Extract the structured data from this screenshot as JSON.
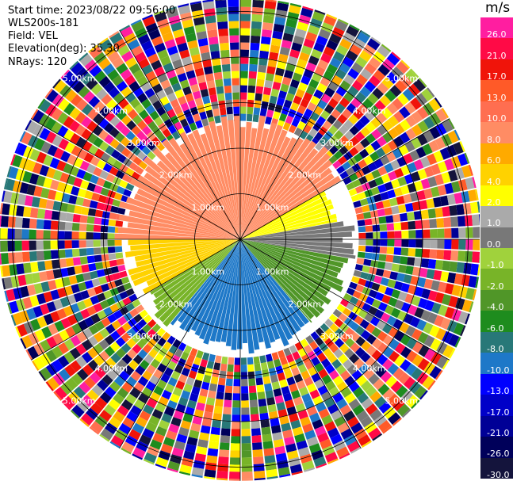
{
  "header": {
    "start_time": "Start time: 2023/08/22 09:56:00",
    "instrument": "WLS200s-181",
    "field": "Field: VEL",
    "elevation": "Elevation(deg): 35.30",
    "nrays": "NRays: 120"
  },
  "colorbar": {
    "unit": "m/s",
    "levels": [
      {
        "label": "26.0",
        "color": "#ff1ea0"
      },
      {
        "label": "21.0",
        "color": "#ff0a46"
      },
      {
        "label": "17.0",
        "color": "#f0140a"
      },
      {
        "label": "13.0",
        "color": "#ff5a28"
      },
      {
        "label": "10.0",
        "color": "#ff6e50"
      },
      {
        "label": "8.0",
        "color": "#ff8c64"
      },
      {
        "label": "6.0",
        "color": "#ffaa00"
      },
      {
        "label": "4.0",
        "color": "#ffd200"
      },
      {
        "label": "2.0",
        "color": "#ffff00"
      },
      {
        "label": "1.0",
        "color": "#aaaaaa"
      },
      {
        "label": "0.0",
        "color": "#787878"
      },
      {
        "label": "-1.0",
        "color": "#a0d23c"
      },
      {
        "label": "-2.0",
        "color": "#78b428"
      },
      {
        "label": "-4.0",
        "color": "#509628"
      },
      {
        "label": "-6.0",
        "color": "#1e8c1e"
      },
      {
        "label": "-8.0",
        "color": "#287878"
      },
      {
        "label": "-10.0",
        "color": "#1e78c8"
      },
      {
        "label": "-13.0",
        "color": "#0000ff"
      },
      {
        "label": "-17.0",
        "color": "#0000c8"
      },
      {
        "label": "-21.0",
        "color": "#000096"
      },
      {
        "label": "-26.0",
        "color": "#00005a"
      },
      {
        "label": "-30.0",
        "color": "#14143c"
      }
    ]
  },
  "chart_data": {
    "type": "heatmap",
    "projection": "polar-ppi",
    "title": "",
    "field": "VEL",
    "units": "m/s",
    "nrays": 120,
    "range_ring_labels": [
      "1.00km",
      "2.00km",
      "3.00km",
      "4.00km",
      "5.00km"
    ],
    "range_rings_km": [
      1,
      2,
      3,
      4,
      5
    ],
    "max_range_km": 5.3,
    "azimuth_lines_deg": [
      0,
      30,
      60,
      90,
      120,
      150,
      180,
      210,
      240,
      270,
      300,
      330
    ],
    "velocity_sectors": [
      {
        "azimuth_deg": [
          270,
          360
        ],
        "range_km": [
          0,
          2.6
        ],
        "velocity_ms": 8.0
      },
      {
        "azimuth_deg": [
          0,
          60
        ],
        "range_km": [
          0,
          2.6
        ],
        "velocity_ms": 8.0
      },
      {
        "azimuth_deg": [
          240,
          270
        ],
        "range_km": [
          0,
          2.4
        ],
        "velocity_ms": 4.0
      },
      {
        "azimuth_deg": [
          60,
          80
        ],
        "range_km": [
          0,
          2.2
        ],
        "velocity_ms": 2.0
      },
      {
        "azimuth_deg": [
          80,
          100
        ],
        "range_km": [
          0,
          2.4
        ],
        "velocity_ms": 0.0
      },
      {
        "azimuth_deg": [
          100,
          140
        ],
        "range_km": [
          0,
          2.4
        ],
        "velocity_ms": -4.0
      },
      {
        "azimuth_deg": [
          140,
          220
        ],
        "range_km": [
          0,
          2.4
        ],
        "velocity_ms": -10.0
      },
      {
        "azimuth_deg": [
          220,
          240
        ],
        "range_km": [
          0,
          2.4
        ],
        "velocity_ms": -2.0
      }
    ],
    "outer_region": {
      "range_km": [
        2.6,
        5.3
      ],
      "pattern": "noise"
    }
  }
}
